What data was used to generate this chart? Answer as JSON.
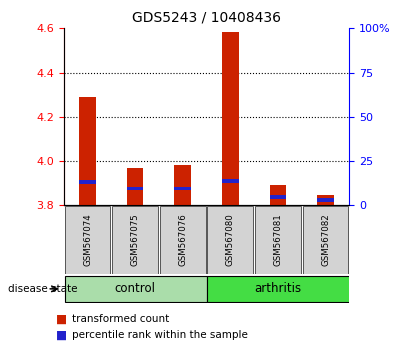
{
  "title": "GDS5243 / 10408436",
  "samples": [
    "GSM567074",
    "GSM567075",
    "GSM567076",
    "GSM567080",
    "GSM567081",
    "GSM567082"
  ],
  "groups": [
    "control",
    "control",
    "control",
    "arthritis",
    "arthritis",
    "arthritis"
  ],
  "control_color": "#aaddaa",
  "arthritis_color": "#44dd44",
  "red_values": [
    4.29,
    3.97,
    3.98,
    4.585,
    3.89,
    3.845
  ],
  "blue_values": [
    13.0,
    9.5,
    9.5,
    13.5,
    4.5,
    3.0
  ],
  "base_value": 3.8,
  "ylim_left": [
    3.8,
    4.6
  ],
  "ylim_right": [
    0,
    100
  ],
  "left_ticks": [
    3.8,
    4.0,
    4.2,
    4.4,
    4.6
  ],
  "right_ticks": [
    0,
    25,
    50,
    75,
    100
  ],
  "right_tick_labels": [
    "0",
    "25",
    "50",
    "75",
    "100%"
  ],
  "bar_color": "#cc2200",
  "blue_color": "#2222cc",
  "disease_state_label": "disease state",
  "legend_red": "transformed count",
  "legend_blue": "percentile rank within the sample",
  "bar_width": 0.35
}
